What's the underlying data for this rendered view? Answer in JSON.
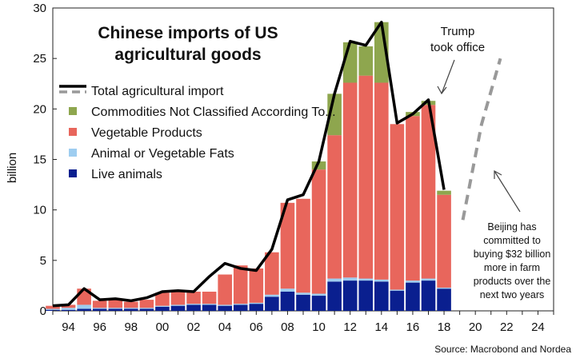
{
  "chart_data": {
    "type": "bar",
    "stacked": true,
    "title": "Chinese imports of US agricultural goods",
    "ylabel": "billion",
    "ylim": [
      0,
      30
    ],
    "y_ticks": [
      0,
      5,
      10,
      15,
      20,
      25,
      30
    ],
    "xlim": [
      1993,
      2025
    ],
    "x_ticks": [
      "94",
      "96",
      "98",
      "00",
      "02",
      "04",
      "06",
      "08",
      "10",
      "12",
      "14",
      "16",
      "18",
      "20",
      "22",
      "24"
    ],
    "grid": false,
    "legend_position": "top-left",
    "categories": [
      "1993",
      "1994",
      "1995",
      "1996",
      "1997",
      "1998",
      "1999",
      "2000",
      "2001",
      "2002",
      "2003",
      "2004",
      "2005",
      "2006",
      "2007",
      "2008",
      "2009",
      "2010",
      "2011",
      "2012",
      "2013",
      "2014",
      "2015",
      "2016",
      "2017",
      "2018"
    ],
    "series": [
      {
        "name": "Live animals",
        "color": "#0a1f8f",
        "values": [
          0.1,
          0.1,
          0.2,
          0.2,
          0.2,
          0.2,
          0.2,
          0.4,
          0.5,
          0.6,
          0.6,
          0.5,
          0.6,
          0.7,
          1.4,
          1.9,
          1.6,
          1.5,
          2.9,
          3.0,
          3.0,
          2.9,
          2.0,
          2.8,
          3.0,
          2.2
        ]
      },
      {
        "name": "Animal or Vegetable Fats",
        "color": "#9ecdf0",
        "values": [
          0.1,
          0.2,
          0.4,
          0.1,
          0.1,
          0.1,
          0.1,
          0.1,
          0.1,
          0.1,
          0.1,
          0.1,
          0.1,
          0.1,
          0.2,
          0.3,
          0.2,
          0.2,
          0.3,
          0.3,
          0.2,
          0.2,
          0.1,
          0.2,
          0.2,
          0.1
        ]
      },
      {
        "name": "Vegetable Products",
        "color": "#e8665c",
        "values": [
          0.3,
          0.3,
          1.6,
          0.7,
          0.8,
          0.6,
          0.8,
          1.3,
          1.3,
          1.2,
          1.2,
          3.0,
          3.8,
          3.4,
          4.2,
          8.5,
          9.3,
          12.3,
          14.2,
          19.3,
          20.1,
          19.5,
          16.4,
          16.3,
          17.2,
          9.2
        ]
      },
      {
        "name": "Commodities Not Classified According To...",
        "color": "#8ea64e",
        "values": [
          0,
          0,
          0,
          0,
          0,
          0,
          0,
          0,
          0,
          0,
          0,
          0,
          0,
          0,
          0,
          0,
          0,
          0.8,
          4.1,
          4.0,
          2.9,
          6.0,
          0,
          0.4,
          0.4,
          0.4
        ]
      }
    ],
    "total_line": {
      "name": "Total agricultural import",
      "x": [
        1993,
        1994,
        1995,
        1996,
        1997,
        1998,
        1999,
        2000,
        2001,
        2002,
        2003,
        2004,
        2005,
        2006,
        2007,
        2008,
        2009,
        2010,
        2011,
        2012,
        2013,
        2014,
        2015,
        2016,
        2017,
        2018
      ],
      "values": [
        0.5,
        0.6,
        2.2,
        1.1,
        1.2,
        1.0,
        1.3,
        1.9,
        2.0,
        1.9,
        3.4,
        4.7,
        4.2,
        4.0,
        6.1,
        11.0,
        11.5,
        14.8,
        21.5,
        26.7,
        26.3,
        28.6,
        18.6,
        19.5,
        20.9,
        12.0
      ]
    },
    "projection_line": {
      "x": [
        2019.2,
        2020.4,
        2021.6
      ],
      "values": [
        9.0,
        18.5,
        25.0
      ]
    },
    "annotations": {
      "trump_line1": "Trump",
      "trump_line2": "took office",
      "beijing_lines": [
        "Beijing has",
        "committed to",
        "buying $32 billion",
        "more in farm",
        "products over the",
        "next two years"
      ]
    },
    "source": "Source: Macrobond and Nordea"
  }
}
